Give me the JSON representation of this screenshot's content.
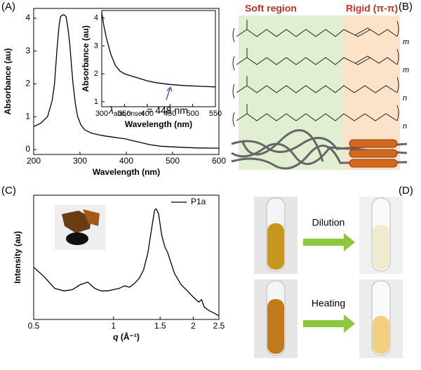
{
  "panel_labels": [
    "(A)",
    "(B)",
    "(C)",
    "(D)"
  ],
  "chart_data": [
    {
      "type": "line",
      "x_label": "Wavelength (nm)",
      "y_label": "Absorbance (au)",
      "color": "#000000",
      "x": [
        200,
        215,
        230,
        240,
        245,
        250,
        255,
        258,
        262,
        266,
        270,
        274,
        278,
        282,
        285,
        290,
        295,
        302,
        310,
        325,
        340,
        355,
        370,
        385,
        400,
        410,
        420,
        435,
        450,
        475,
        500,
        550,
        600
      ],
      "values": [
        0.7,
        0.8,
        1.0,
        1.5,
        2.0,
        3.0,
        3.8,
        4.05,
        4.1,
        4.1,
        4.05,
        3.7,
        3.2,
        2.5,
        2.0,
        1.4,
        1.0,
        0.75,
        0.6,
        0.5,
        0.45,
        0.41,
        0.38,
        0.35,
        0.32,
        0.28,
        0.25,
        0.2,
        0.15,
        0.1,
        0.08,
        0.05,
        0.04
      ],
      "xlim": [
        200,
        600
      ],
      "ylim": [
        -0.15,
        4.3
      ],
      "xticks": [
        200,
        300,
        400,
        500,
        600
      ],
      "yticks": [
        0,
        1,
        2,
        3,
        4
      ]
    },
    {
      "type": "line",
      "x_label": "Wavelength (nm)",
      "y_label": "Absorbance (au)",
      "color": "#000000",
      "x": [
        300,
        305,
        310,
        315,
        320,
        330,
        340,
        350,
        360,
        370,
        380,
        390,
        400,
        420,
        448,
        480,
        520,
        550
      ],
      "values": [
        4.2,
        3.7,
        3.3,
        3.0,
        2.7,
        2.3,
        2.1,
        2.0,
        1.95,
        1.9,
        1.85,
        1.8,
        1.75,
        1.68,
        1.62,
        1.58,
        1.55,
        1.53
      ],
      "xlim": [
        300,
        550
      ],
      "ylim": [
        0.82,
        4.27
      ],
      "xticks": [
        300,
        350,
        400,
        450,
        500,
        550
      ],
      "yticks": [
        1,
        2,
        3,
        4
      ],
      "annotation": {
        "symbol": "λ",
        "subscript": "abs,onset",
        "text": " = 448 nm",
        "x": 448,
        "y": 1.62
      }
    },
    {
      "type": "line",
      "log_x": true,
      "x_label": {
        "symbol": "q",
        "unit": " (Å⁻¹)"
      },
      "y_label": "Intensity (au)",
      "series": [
        {
          "name": "P1a",
          "color": "#000000",
          "x": [
            0.5,
            0.55,
            0.6,
            0.65,
            0.7,
            0.75,
            0.8,
            0.85,
            0.9,
            0.95,
            1.0,
            1.05,
            1.1,
            1.15,
            1.2,
            1.25,
            1.3,
            1.35,
            1.4,
            1.43,
            1.45,
            1.48,
            1.52,
            1.56,
            1.6,
            1.7,
            1.8,
            1.9,
            2.0,
            2.1,
            2.15,
            2.2,
            2.3,
            2.4,
            2.5
          ],
          "values": [
            0.42,
            0.34,
            0.25,
            0.23,
            0.24,
            0.28,
            0.3,
            0.25,
            0.23,
            0.23,
            0.24,
            0.25,
            0.27,
            0.26,
            0.29,
            0.33,
            0.4,
            0.54,
            0.76,
            0.88,
            0.89,
            0.85,
            0.68,
            0.59,
            0.54,
            0.37,
            0.28,
            0.23,
            0.18,
            0.14,
            0.16,
            0.1,
            0.07,
            0.05,
            0.03
          ]
        }
      ],
      "xlim": [
        0.5,
        2.5
      ],
      "ylim": [
        0,
        1
      ],
      "xticks": [
        0.5,
        1,
        1.5,
        2,
        2.5
      ],
      "yticks": []
    }
  ],
  "diagram": {
    "soft_label": "Soft region",
    "rigid_label": "Rigid (π-π)",
    "subscripts": [
      "m",
      "m",
      "n",
      "n"
    ]
  },
  "photos": {
    "top_label": "Dilution",
    "bottom_label": "Heating"
  }
}
